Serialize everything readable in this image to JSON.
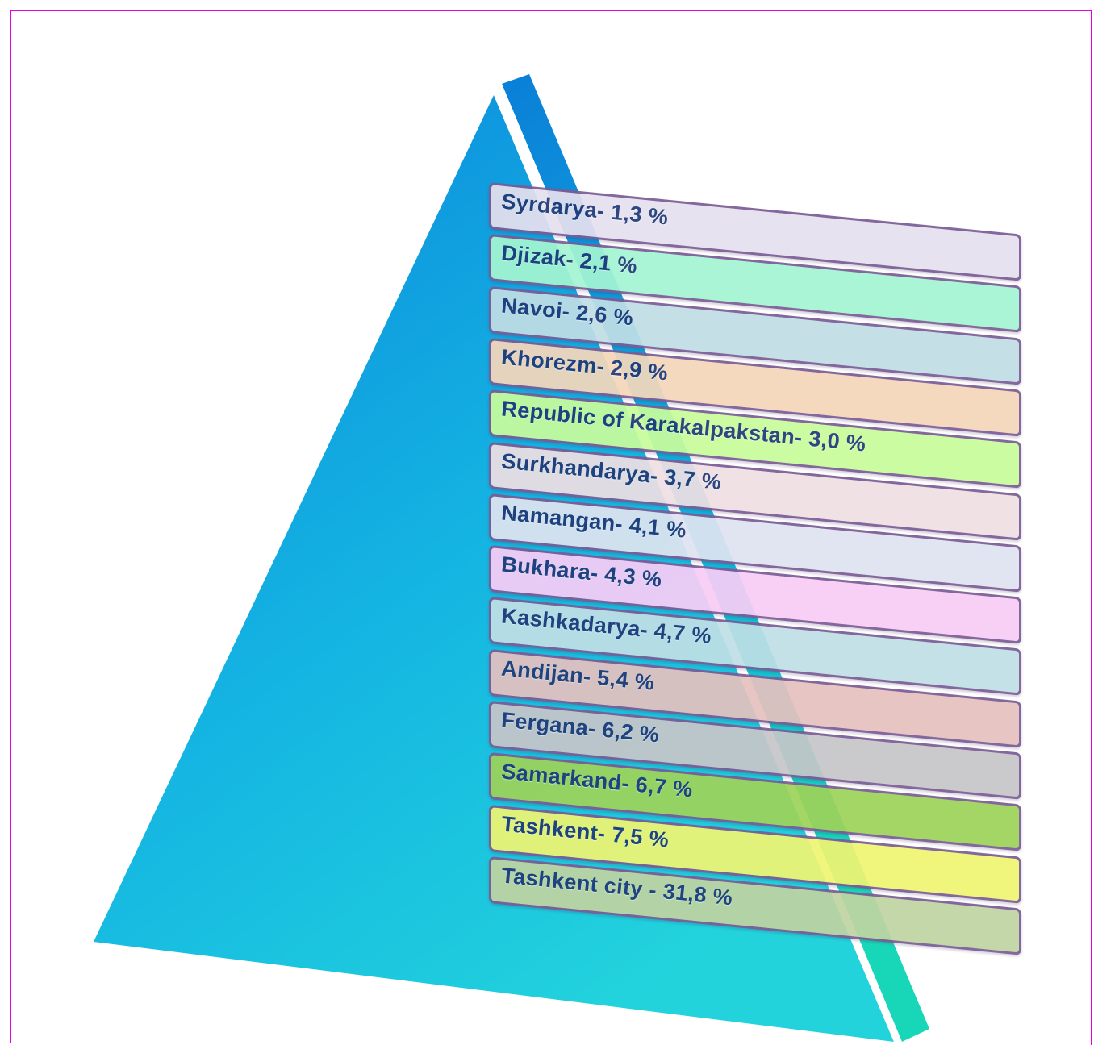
{
  "regions": [
    {
      "label": "Syrdarya- 1,3 %",
      "color": "#e6e0ee"
    },
    {
      "label": "Djizak- 2,1 %",
      "color": "#a3f5d2"
    },
    {
      "label": "Navoi- 2,6 %",
      "color": "#c0dee5"
    },
    {
      "label": "Khorezm- 2,9 %",
      "color": "#f5d7bb"
    },
    {
      "label": "Republic of Karakalpakstan- 3,0 %",
      "color": "#c8fc9c"
    },
    {
      "label": "Surkhandarya- 3,7 %",
      "color": "#eedfe3"
    },
    {
      "label": "Namangan- 4,1 %",
      "color": "#dfe4f0"
    },
    {
      "label": "Bukhara- 4,3 %",
      "color": "#f8cdf6"
    },
    {
      "label": "Kashkadarya- 4,7 %",
      "color": "#bfdfe6"
    },
    {
      "label": "Andijan- 5,4 %",
      "color": "#e5c1bf"
    },
    {
      "label": "Fergana- 6,2 %",
      "color": "#c6c6c9"
    },
    {
      "label": "Samarkand- 6,7 %",
      "color": "#9dd35a"
    },
    {
      "label": "Tashkent- 7,5 %",
      "color": "#eff572"
    },
    {
      "label": "Tashkent city - 31,8 %",
      "color": "#bfd4a2"
    }
  ],
  "colors": {
    "frame": "#e600e6",
    "pyramid_top": "#0a88dd",
    "pyramid_bottom": "#1dd8cf",
    "band_border": "#7a5c96",
    "label_text": "#1f3a78"
  }
}
